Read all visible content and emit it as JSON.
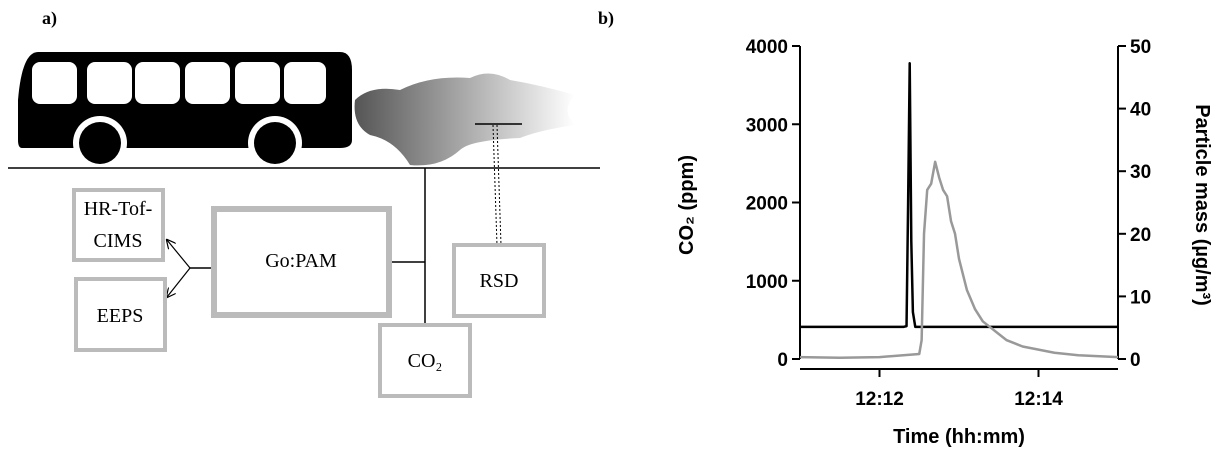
{
  "panel_labels": [
    "a)",
    "b)"
  ],
  "diagram": {
    "nodes": [
      {
        "lines": [
          "HR-Tof-",
          "CIMS"
        ]
      },
      {
        "lines": [
          "EEPS"
        ]
      },
      {
        "lines": [
          "Go:PAM"
        ]
      },
      {
        "lines": [
          "RSD"
        ]
      },
      {
        "lines": [
          "CO₂"
        ]
      }
    ]
  },
  "chart_data": {
    "type": "line",
    "xlabel": "Time (hh:mm)",
    "ylabel": "CO₂ (ppm)",
    "y2label": "Particle mass (µg/m³)",
    "xlim": [
      731,
      735
    ],
    "xticks": [
      {
        "value": 732,
        "label": "12:12"
      },
      {
        "value": 734,
        "label": "12:14"
      }
    ],
    "ylim": [
      0,
      4000
    ],
    "yticks": [
      0,
      1000,
      2000,
      3000,
      4000
    ],
    "y2lim": [
      0,
      50
    ],
    "y2ticks": [
      0,
      10,
      20,
      30,
      40,
      50
    ],
    "series": [
      {
        "color": "#000000",
        "x": [
          731.0,
          732.3,
          732.34,
          732.36,
          732.38,
          732.4,
          732.42,
          732.45,
          735.0
        ],
        "values": [
          410,
          410,
          420,
          2000,
          3780,
          1500,
          600,
          410,
          410
        ]
      },
      {
        "color": "#999999",
        "axis": "y2",
        "x": [
          731.0,
          731.5,
          732.0,
          732.5,
          732.53,
          732.56,
          732.6,
          732.65,
          732.7,
          732.75,
          732.8,
          732.85,
          732.9,
          732.95,
          733.0,
          733.1,
          733.2,
          733.3,
          733.4,
          733.5,
          733.6,
          733.7,
          733.8,
          734.0,
          734.2,
          734.5,
          735.0
        ],
        "values": [
          0.3,
          0.2,
          0.3,
          0.8,
          3,
          20,
          27,
          28,
          31.5,
          29,
          27,
          26,
          22,
          20,
          16,
          11,
          8,
          6,
          5,
          4,
          3,
          2.5,
          2,
          1.5,
          1,
          0.6,
          0.3
        ]
      }
    ]
  }
}
